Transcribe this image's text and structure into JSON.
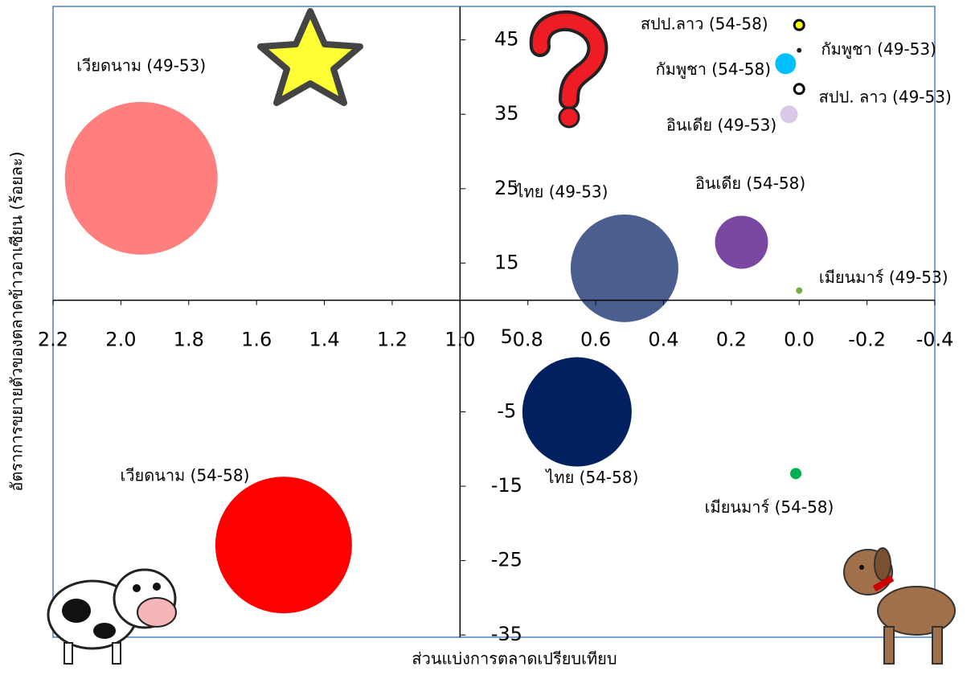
{
  "chart_data": {
    "type": "bubble",
    "x_title": "ส่วนแบ่งการตลาดเปรียบเทียบ",
    "y_title": "อัตราการขยายตัวของตลาดข้าวอาเซียน (ร้อยละ)",
    "xlim": [
      2.2,
      -0.4
    ],
    "ylim": [
      -35.3,
      49.5
    ],
    "xaxis_crosses_y": 10,
    "yaxis_crosses_x": 1.0,
    "xticks": [
      2.2,
      {
        "value": 2,
        "label": "2.0"
      },
      1.8,
      1.6,
      1.4,
      1.2,
      {
        "value": 1,
        "label": "1.0"
      },
      0.8,
      0.6,
      0.4,
      0.2,
      {
        "value": 0,
        "label": "0.0"
      },
      -0.2,
      -0.4
    ],
    "yticks": [
      45,
      35,
      25,
      15,
      5,
      -5,
      -15,
      -25,
      -35
    ],
    "points": [
      {
        "label": "เวียดนาม (49-53)",
        "x": 1.94,
        "y": 26.4,
        "size": 95,
        "color": "#ff7f7f"
      },
      {
        "label": "เวียดนาม (54-58)",
        "x": 1.52,
        "y": -22.9,
        "size": 85,
        "color": "#ff0000"
      },
      {
        "label": "ไทย (49-53)",
        "x": 0.515,
        "y": 14.3,
        "size": 67,
        "color": "#4a5f8f"
      },
      {
        "label": "ไทย (54-58)",
        "x": 0.655,
        "y": -5,
        "size": 68,
        "color": "#002060"
      },
      {
        "label": "อินเดีย (54-58)",
        "x": 0.17,
        "y": 17.8,
        "size": 33,
        "color": "#7a48a0"
      },
      {
        "label": "อินเดีย (49-53)",
        "x": 0.03,
        "y": 35,
        "size": 11,
        "color": "#d9c8e8"
      },
      {
        "label": "กัมพูชา (54-58)",
        "x": 0.04,
        "y": 41.8,
        "size": 13,
        "color": "#00bfff"
      },
      {
        "label": "กัมพูชา (49-53)",
        "x": 0.0,
        "y": 43.6,
        "size": 3,
        "color": "#222222"
      },
      {
        "label": "สปป.ลาว (54-58)",
        "x": 0.0,
        "y": 47,
        "size": 6,
        "color": "#ffff00",
        "edgecolor": "#000000"
      },
      {
        "label": "สปป. ลาว (49-53)",
        "x": 0.0,
        "y": 38.4,
        "size": 6,
        "color": "#ffffff",
        "edgecolor": "#000000"
      },
      {
        "label": "เมียนมาร์ (49-53)",
        "x": 0.0,
        "y": 11.3,
        "size": 4,
        "color": "#70ad47"
      },
      {
        "label": "เมียนมาร์ (54-58)",
        "x": 0.01,
        "y": -13.3,
        "size": 7,
        "color": "#00b050"
      }
    ]
  }
}
